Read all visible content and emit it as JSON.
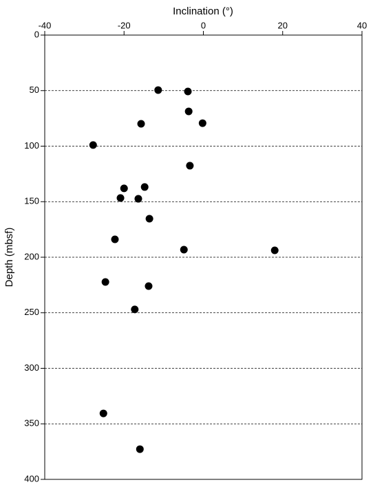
{
  "chart_data": {
    "type": "scatter",
    "x_label": "Inclination (°)",
    "y_label": "Depth (mbsf)",
    "x_axis_position": "top",
    "y_inverted": true,
    "grid": true,
    "color": "#000000",
    "xlim": [
      -40,
      40
    ],
    "xticks": [
      -40,
      -20,
      0,
      20,
      40
    ],
    "ylim": [
      0,
      400
    ],
    "yticks": [
      0,
      50,
      100,
      150,
      200,
      250,
      300,
      350,
      400
    ],
    "x": [
      -11.4,
      -3.9,
      -3.7,
      -15.7,
      -0.2,
      -27.8,
      -3.4,
      -20,
      -14.8,
      -20.9,
      -16.4,
      -13.6,
      -22.3,
      -4.9,
      18,
      -24.7,
      -13.8,
      -17.3,
      -25.2,
      -16
    ],
    "y": [
      49.5,
      50.8,
      68.7,
      79.9,
      79.3,
      99,
      117.6,
      138,
      136.8,
      146.7,
      147.4,
      165.3,
      183.9,
      193.2,
      193.8,
      222.3,
      226,
      247,
      340.6,
      372.8
    ]
  }
}
